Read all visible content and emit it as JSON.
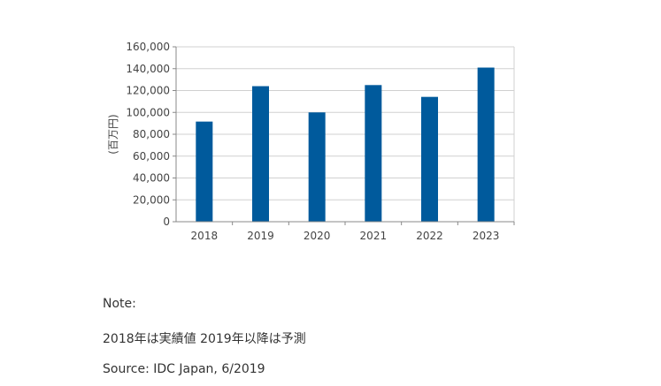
{
  "chart_data": {
    "type": "bar",
    "categories": [
      "2018",
      "2019",
      "2020",
      "2021",
      "2022",
      "2023"
    ],
    "values": [
      91600,
      124000,
      100000,
      125000,
      114200,
      141000
    ],
    "ylabel": "(百万円)",
    "ylim": [
      0,
      160000
    ],
    "yticks": [
      0,
      20000,
      40000,
      60000,
      80000,
      100000,
      120000,
      140000,
      160000
    ],
    "ytick_labels": [
      "0",
      "20,000",
      "40,000",
      "60,000",
      "80,000",
      "100,000",
      "120,000",
      "140,000",
      "160,000"
    ],
    "grid": true,
    "bar_color": "#005a9c"
  },
  "notes": {
    "label": "Note:",
    "text": "2018年は実績値 2019年以降は予測",
    "source": "Source: IDC Japan, 6/2019"
  }
}
